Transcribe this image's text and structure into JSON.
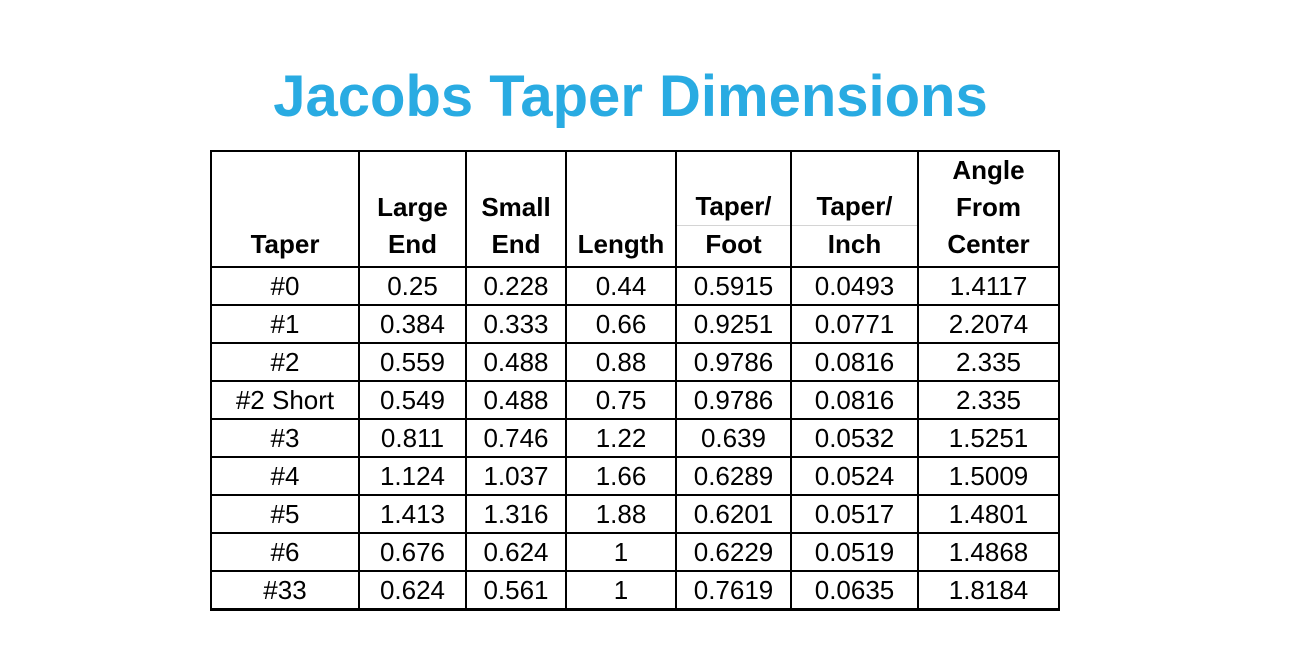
{
  "title": "Jacobs Taper Dimensions",
  "colors": {
    "title": "#29ABE2",
    "table_border": "#000000",
    "header_divider": "#D4D4D4",
    "text": "#000000",
    "background": "#FFFFFF"
  },
  "table": {
    "header": [
      {
        "name": "taper",
        "lines": [
          "Taper"
        ],
        "divider": false
      },
      {
        "name": "large-end",
        "lines": [
          "Large",
          "End"
        ],
        "divider": false
      },
      {
        "name": "small-end",
        "lines": [
          "Small",
          "End"
        ],
        "divider": false
      },
      {
        "name": "length",
        "lines": [
          "Length"
        ],
        "divider": false
      },
      {
        "name": "taper-per-foot",
        "lines": [
          "Taper/",
          "Foot"
        ],
        "divider": true
      },
      {
        "name": "taper-per-inch",
        "lines": [
          "Taper/",
          "Inch"
        ],
        "divider": true
      },
      {
        "name": "angle-from-center",
        "lines": [
          "Angle",
          "From",
          "Center"
        ],
        "divider": false
      }
    ]
  },
  "chart_data": {
    "type": "table",
    "title": "Jacobs Taper Dimensions",
    "columns": [
      "Taper",
      "Large End",
      "Small End",
      "Length",
      "Taper/Foot",
      "Taper/Inch",
      "Angle From Center"
    ],
    "rows": [
      [
        "#0",
        "0.25",
        "0.228",
        "0.44",
        "0.5915",
        "0.0493",
        "1.4117"
      ],
      [
        "#1",
        "0.384",
        "0.333",
        "0.66",
        "0.9251",
        "0.0771",
        "2.2074"
      ],
      [
        "#2",
        "0.559",
        "0.488",
        "0.88",
        "0.9786",
        "0.0816",
        "2.335"
      ],
      [
        "#2 Short",
        "0.549",
        "0.488",
        "0.75",
        "0.9786",
        "0.0816",
        "2.335"
      ],
      [
        "#3",
        "0.811",
        "0.746",
        "1.22",
        "0.639",
        "0.0532",
        "1.5251"
      ],
      [
        "#4",
        "1.124",
        "1.037",
        "1.66",
        "0.6289",
        "0.0524",
        "1.5009"
      ],
      [
        "#5",
        "1.413",
        "1.316",
        "1.88",
        "0.6201",
        "0.0517",
        "1.4801"
      ],
      [
        "#6",
        "0.676",
        "0.624",
        "1",
        "0.6229",
        "0.0519",
        "1.4868"
      ],
      [
        "#33",
        "0.624",
        "0.561",
        "1",
        "0.7619",
        "0.0635",
        "1.8184"
      ]
    ],
    "layout": {
      "grid": true,
      "header_rows": 1,
      "value_alignment": "center"
    }
  }
}
